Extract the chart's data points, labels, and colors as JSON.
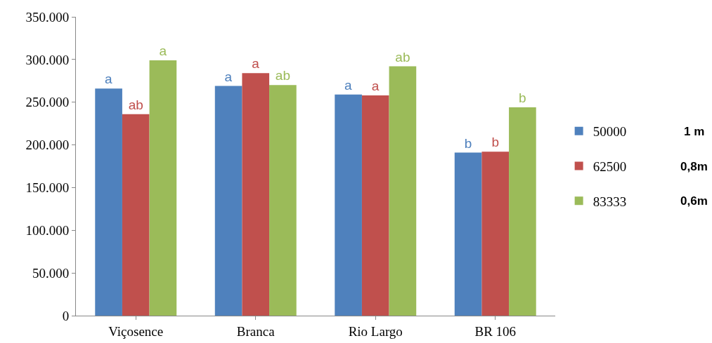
{
  "chart_data": {
    "type": "bar",
    "categories": [
      "Viçosence",
      "Branca",
      "Rio Largo",
      "BR 106"
    ],
    "series": [
      {
        "name": "50000",
        "color": "#4f81bd",
        "values": [
          266000,
          269000,
          259000,
          191000
        ],
        "value_labels": [
          "a",
          "a",
          "a",
          "b"
        ]
      },
      {
        "name": "62500",
        "color": "#c0504d",
        "values": [
          236000,
          284000,
          258000,
          192000
        ],
        "value_labels": [
          "ab",
          "a",
          "a",
          "b"
        ]
      },
      {
        "name": "83333",
        "color": "#9bbb59",
        "values": [
          299000,
          270000,
          292000,
          244000
        ],
        "value_labels": [
          "a",
          "ab",
          "ab",
          "b"
        ]
      }
    ],
    "ylim": [
      0,
      350000
    ],
    "yticks": [
      {
        "value": 0,
        "label": "0"
      },
      {
        "value": 50000,
        "label": "50.000"
      },
      {
        "value": 100000,
        "label": "100.000"
      },
      {
        "value": 150000,
        "label": "150.000"
      },
      {
        "value": 200000,
        "label": "200.000"
      },
      {
        "value": 250000,
        "label": "250.000"
      },
      {
        "value": 300000,
        "label": "300.000"
      },
      {
        "value": 350000,
        "label": "350.000"
      }
    ],
    "annotations": [
      "1 m",
      "0,8m",
      "0,6m"
    ],
    "grid": false,
    "legend": "right"
  }
}
